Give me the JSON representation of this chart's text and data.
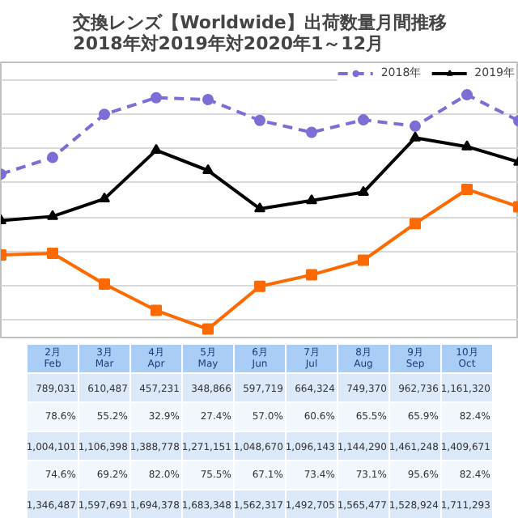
{
  "chart_data": {
    "type": "line",
    "title": "交換レンズ【Worldwide】出荷数量月間推移",
    "subtitle": "2018年対2019年対2020年1～12月",
    "categories": [
      null,
      "2月\nFeb",
      "3月\nMar",
      "4月\nApr",
      "5月\nMay",
      "6月\nJun",
      "7月\nJul",
      "8月\nAug",
      "9月\nSep",
      "10月\nOct",
      null
    ],
    "series": [
      {
        "name": "2018年",
        "color": "#7b6fd6",
        "marker": "circle",
        "line_style": "dashed",
        "values": [
          1250000,
          1346487,
          1597691,
          1694378,
          1683348,
          1562317,
          1492705,
          1565477,
          1528924,
          1711293,
          1560000
        ],
        "value_labels": [
          null,
          "1,346,487",
          "1,597,691",
          "1,694,378",
          "1,683,348",
          "1,562,317",
          "1,492,705",
          "1,565,477",
          "1,528,924",
          "1,711,293",
          null
        ]
      },
      {
        "name": "2019年",
        "color": "#000000",
        "marker": "triangle",
        "line_style": "solid",
        "values": [
          980000,
          1004101,
          1106398,
          1388778,
          1271151,
          1048670,
          1096143,
          1144290,
          1461248,
          1409671,
          1320000
        ],
        "value_labels": [
          null,
          "1,004,101",
          "1,106,398",
          "1,388,778",
          "1,271,151",
          "1,048,670",
          "1,096,143",
          "1,144,290",
          "1,461,248",
          "1,409,671",
          null
        ]
      },
      {
        "color": "#ff6a00",
        "marker": "square",
        "line_style": "solid",
        "values": [
          780000,
          789031,
          610487,
          457231,
          348866,
          597719,
          664324,
          749370,
          962736,
          1161320,
          1060000
        ],
        "value_labels": [
          null,
          "789,031",
          "610,487",
          "457,231",
          "348,866",
          "597,719",
          "664,324",
          "749,370",
          "962,736",
          "1,161,320",
          null
        ]
      }
    ],
    "annotations": [
      "78.6%",
      "55.2%",
      "32.9%",
      "27.4%",
      "57.0%",
      "60.6%",
      "65.5%",
      "65.9%",
      "82.4%",
      "74.6%",
      "69.2%",
      "82.0%",
      "75.5%",
      "67.1%",
      "73.4%",
      "73.1%",
      "95.6%",
      "82.4%"
    ],
    "ylim": [
      300000,
      1900000
    ],
    "yticks": [
      {
        "value": 400000,
        "label": null
      },
      {
        "value": 600000,
        "label": null
      },
      {
        "value": 800000,
        "label": null
      },
      {
        "value": 1000000,
        "label": null
      },
      {
        "value": 1200000,
        "label": null
      },
      {
        "value": 1400000,
        "label": null
      },
      {
        "value": 1600000,
        "label": null
      },
      {
        "value": 1800000,
        "label": null
      }
    ],
    "tick_labels": false,
    "grid": "y",
    "legend": "top right"
  }
}
